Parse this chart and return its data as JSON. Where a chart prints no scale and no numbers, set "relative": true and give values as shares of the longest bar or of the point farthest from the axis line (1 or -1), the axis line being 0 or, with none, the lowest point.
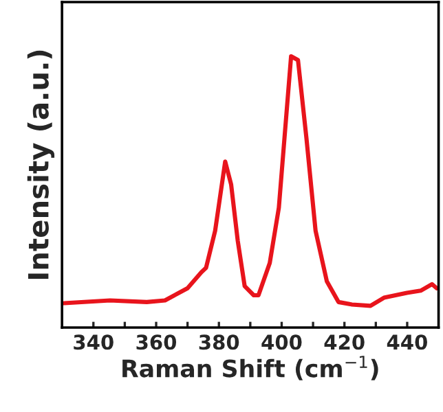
{
  "chart_data": {
    "type": "line",
    "relative": true,
    "xlabel": "Raman Shift (cm$^{−1}$)",
    "ylabel": "Intensity (a.u.)",
    "x": [
      330.7,
      345.3,
      357,
      362.8,
      370,
      374.4,
      375.9,
      378.8,
      382,
      383.9,
      386,
      388.2,
      391.1,
      392.6,
      396.2,
      399.1,
      403,
      405.2,
      407.9,
      410.8,
      414.4,
      418.1,
      422.4,
      428.3,
      432.6,
      439.9,
      444.3,
      447.9,
      449.4
    ],
    "series": [
      {
        "color": "#e8141c",
        "values": [
          0.09,
          0.1,
          0.094,
          0.1,
          0.145,
          0.204,
          0.22,
          0.357,
          0.612,
          0.527,
          0.32,
          0.153,
          0.119,
          0.119,
          0.238,
          0.442,
          1.0,
          0.986,
          0.697,
          0.357,
          0.17,
          0.094,
          0.085,
          0.08,
          0.11,
          0.128,
          0.136,
          0.16,
          0.145
        ]
      }
    ],
    "xlim": [
      330,
      450
    ],
    "xticks": [
      340,
      {
        "value": 350,
        "label": null
      },
      360,
      {
        "value": 370,
        "label": null
      },
      380,
      {
        "value": 390,
        "label": null
      },
      400,
      {
        "value": 410,
        "label": null
      },
      420,
      {
        "value": 430,
        "label": null
      },
      440
    ],
    "grid": false,
    "legend": false
  }
}
